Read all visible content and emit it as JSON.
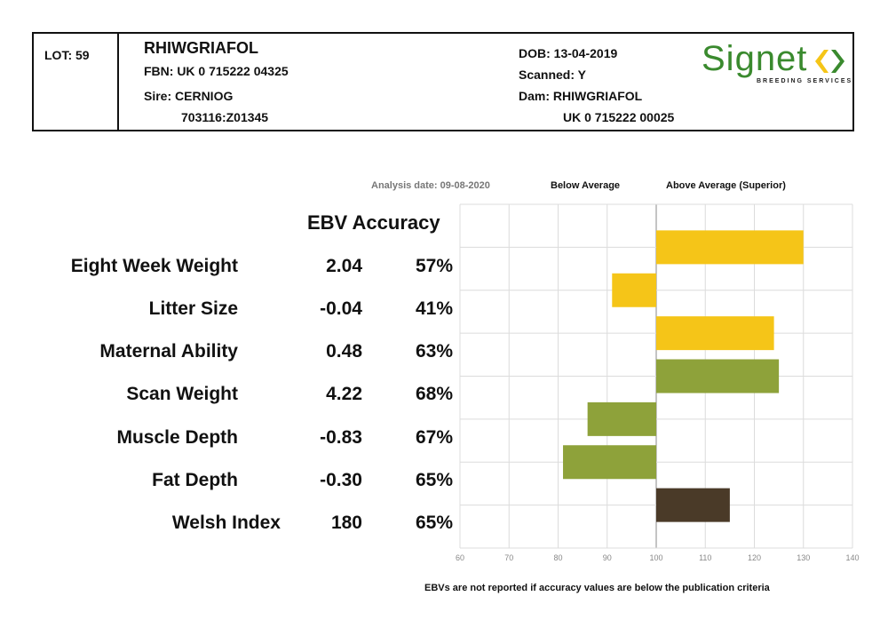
{
  "header": {
    "lot": "LOT: 59",
    "name": "RHIWGRIAFOL",
    "fbn": "FBN: UK 0 715222 04325",
    "sire": "Sire: CERNIOG",
    "sire_id": "703116:Z01345",
    "dob": "DOB: 13-04-2019",
    "scanned": "Scanned: Y",
    "dam": "Dam: RHIWGRIAFOL",
    "dam_id": "UK 0 715222 00025",
    "logo_text": "Signet",
    "logo_sub": "BREEDING SERVICES"
  },
  "labels": {
    "analysis_date": "Analysis date: 09-08-2020",
    "below_average": "Below Average",
    "above_average": "Above Average (Superior)",
    "ebv_accuracy": "EBV Accuracy",
    "footnote": "EBVs are not reported if accuracy values are below the publication criteria"
  },
  "colors": {
    "maternal": "#f5c518",
    "growth": "#8ea23a",
    "index": "#4a3a28",
    "grid": "#dcdcdc"
  },
  "rows": [
    {
      "trait": "Eight Week Weight",
      "ebv": "2.04",
      "accuracy": "57%"
    },
    {
      "trait": "Litter Size",
      "ebv": "-0.04",
      "accuracy": "41%"
    },
    {
      "trait": "Maternal Ability",
      "ebv": "0.48",
      "accuracy": "63%"
    },
    {
      "trait": "Scan Weight",
      "ebv": "4.22",
      "accuracy": "68%"
    },
    {
      "trait": "Muscle Depth",
      "ebv": "-0.83",
      "accuracy": "67%"
    },
    {
      "trait": "Fat Depth",
      "ebv": "-0.30",
      "accuracy": "65%"
    },
    {
      "trait": "Welsh Index",
      "ebv": "180",
      "accuracy": "65%"
    }
  ],
  "chart_data": {
    "type": "bar",
    "orientation": "horizontal",
    "baseline": 100,
    "xlim": [
      60,
      140
    ],
    "xticks": [
      "60",
      "70",
      "80",
      "90",
      "100",
      "110",
      "120",
      "130",
      "140"
    ],
    "grid": true,
    "categories": [
      "Eight Week Weight",
      "Litter Size",
      "Maternal Ability",
      "Scan Weight",
      "Muscle Depth",
      "Fat Depth",
      "Welsh Index"
    ],
    "values": [
      130,
      91,
      124,
      125,
      86,
      81,
      115
    ],
    "bar_colors": [
      "maternal",
      "maternal",
      "maternal",
      "growth",
      "growth",
      "growth",
      "index"
    ]
  }
}
